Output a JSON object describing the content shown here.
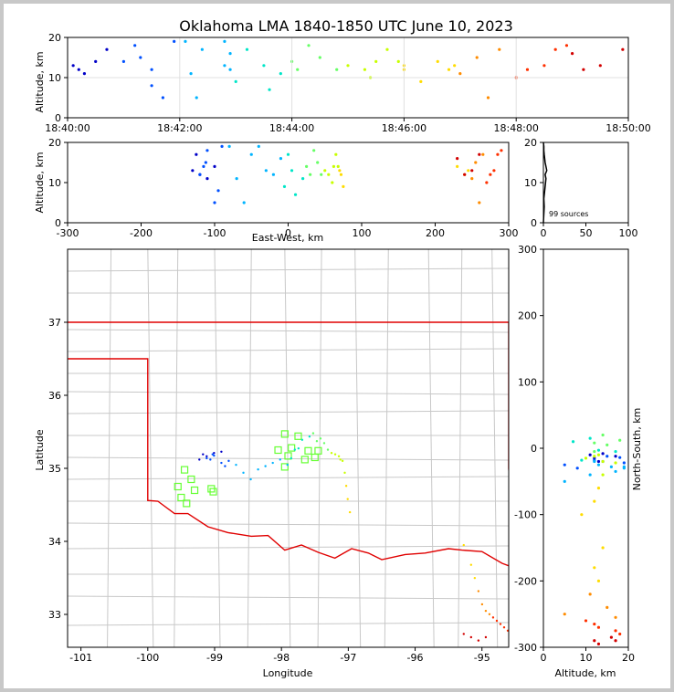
{
  "title": "Oklahoma LMA 1840-1850 UTC June 10, 2023",
  "colors": {
    "frame": "#c8c8c8",
    "county": "#c8c8c8",
    "border": "#e00000",
    "station": "#66ff33",
    "axis": "#000000"
  },
  "labels": {
    "alt": "Altitude, km",
    "ew": "East-West, km",
    "ns": "North-South, km",
    "lat": "Latitude",
    "lon": "Longitude",
    "alt_bottom": "Altitude, km",
    "sources": "99 sources"
  },
  "chart_data": [
    {
      "type": "scatter",
      "panel": "time-altitude",
      "ylabel": "Altitude, km",
      "xticks": [
        "18:40:00",
        "18:42:00",
        "18:44:00",
        "18:46:00",
        "18:48:00",
        "18:50:00"
      ],
      "xlim_minutes": [
        0,
        10
      ],
      "ylim": [
        0,
        20
      ],
      "yticks": [
        0,
        10,
        20
      ],
      "grid": true
    },
    {
      "type": "scatter",
      "panel": "east-west vs altitude",
      "xlabel": "East-West, km",
      "ylabel": "Altitude, km",
      "xlim": [
        -300,
        300
      ],
      "xticks": [
        -300,
        -200,
        -100,
        0,
        100,
        200,
        300
      ],
      "ylim": [
        0,
        20
      ],
      "yticks": [
        0,
        10,
        20
      ]
    },
    {
      "type": "histogram",
      "panel": "altitude histogram",
      "xlim": [
        0,
        100
      ],
      "xticks": [
        0,
        50,
        100
      ],
      "ylim": [
        0,
        20
      ],
      "yticks": [
        0,
        10,
        20
      ],
      "annotation": "99 sources"
    },
    {
      "type": "scatter",
      "panel": "plan view",
      "xlabel": "Longitude",
      "ylabel": "Latitude",
      "xlim": [
        -101.2,
        -94.6
      ],
      "ylim": [
        32.55,
        38.0
      ],
      "xticks": [
        -101,
        -100,
        -99,
        -98,
        -97,
        -96,
        -95
      ],
      "yticks": [
        33,
        34,
        35,
        36,
        37
      ]
    },
    {
      "type": "scatter",
      "panel": "altitude vs north-south",
      "xlabel": "Altitude, km",
      "ylabel": "North-South, km",
      "xlim": [
        0,
        20
      ],
      "xticks": [
        0,
        10,
        20
      ],
      "ylim": [
        -300,
        300
      ],
      "yticks": [
        -300,
        -200,
        -100,
        0,
        100,
        200,
        300
      ]
    }
  ]
}
